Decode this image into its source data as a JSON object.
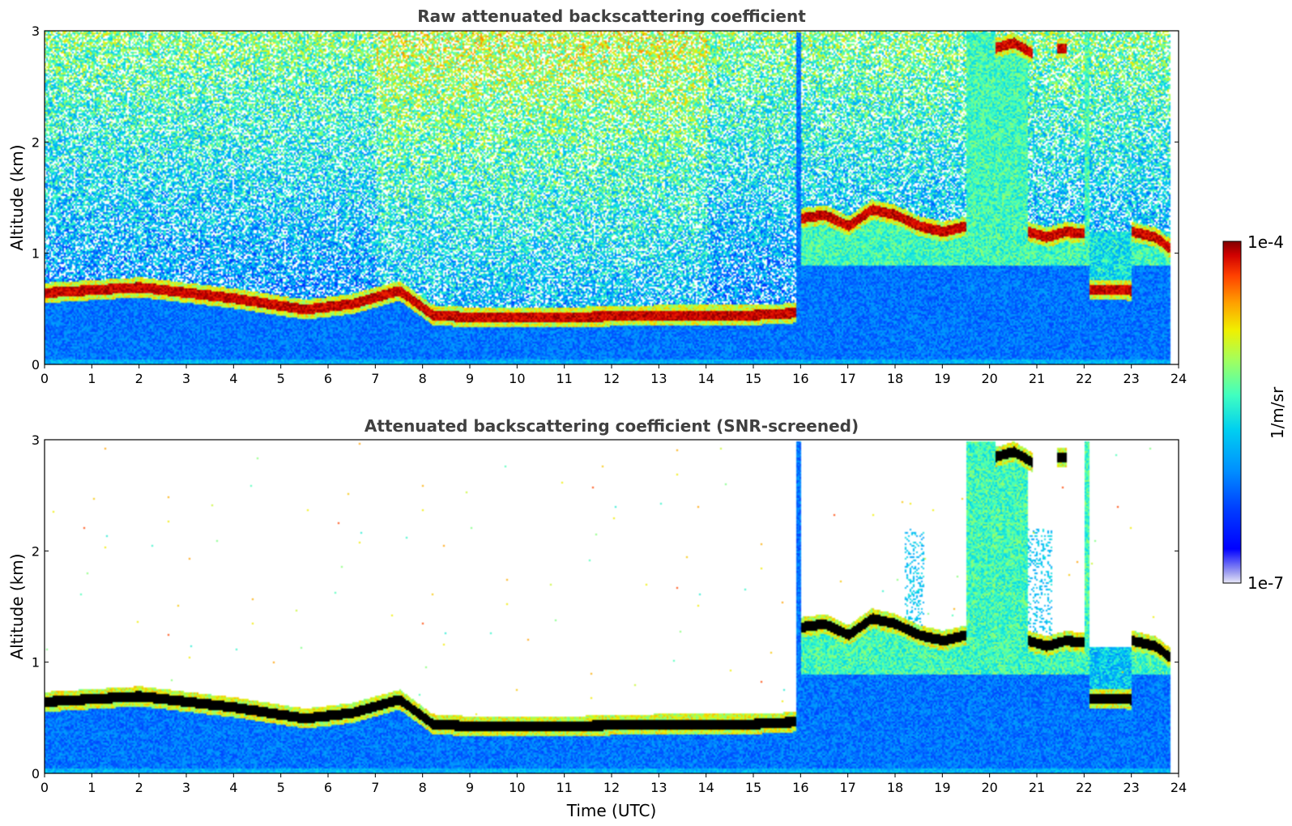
{
  "chart_data": [
    {
      "type": "heatmap",
      "title": "Raw attenuated backscattering coefficient",
      "xlabel": "",
      "ylabel": "Altitude (km)",
      "xlim": [
        0,
        24
      ],
      "ylim": [
        0,
        3
      ],
      "xticks": [
        0,
        1,
        2,
        3,
        4,
        5,
        6,
        7,
        8,
        9,
        10,
        11,
        12,
        13,
        14,
        15,
        16,
        17,
        18,
        19,
        20,
        21,
        22,
        23,
        24
      ],
      "yticks": [
        0,
        1,
        2,
        3
      ],
      "grid": false,
      "colorscale": "jet",
      "noise": "high",
      "cloud_layers": [
        {
          "t": [
            0,
            2,
            4,
            5.5,
            6.5,
            7.5,
            8.2,
            9,
            11,
            13,
            15,
            15.9
          ],
          "alt": [
            0.65,
            0.7,
            0.6,
            0.5,
            0.55,
            0.67,
            0.45,
            0.43,
            0.43,
            0.45,
            0.45,
            0.47
          ]
        },
        {
          "t": [
            16,
            16.5,
            17,
            17.5,
            18,
            18.5,
            19,
            19.5
          ],
          "alt": [
            1.32,
            1.35,
            1.25,
            1.4,
            1.35,
            1.25,
            1.2,
            1.25
          ]
        },
        {
          "t": [
            20.8,
            21.2,
            21.6,
            22.0
          ],
          "alt": [
            1.2,
            1.15,
            1.2,
            1.18
          ]
        },
        {
          "t": [
            22.1,
            22.5,
            23.0
          ],
          "alt": [
            0.68,
            0.68,
            0.67
          ]
        },
        {
          "t": [
            23.0,
            23.5,
            23.8
          ],
          "alt": [
            1.2,
            1.15,
            1.05
          ]
        },
        {
          "t": [
            20.1,
            20.5,
            20.9
          ],
          "alt": [
            2.85,
            2.9,
            2.8
          ]
        },
        {
          "t": [
            21.4,
            21.6
          ],
          "alt": [
            2.85,
            2.85
          ]
        }
      ]
    },
    {
      "type": "heatmap",
      "title": "Attenuated backscattering coefficient (SNR-screened)",
      "xlabel": "Time (UTC)",
      "ylabel": "Altitude (km)",
      "xlim": [
        0,
        24
      ],
      "ylim": [
        0,
        3
      ],
      "xticks": [
        0,
        1,
        2,
        3,
        4,
        5,
        6,
        7,
        8,
        9,
        10,
        11,
        12,
        13,
        14,
        15,
        16,
        17,
        18,
        19,
        20,
        21,
        22,
        23,
        24
      ],
      "yticks": [
        0,
        1,
        2,
        3
      ],
      "grid": false,
      "colorscale": "jet",
      "noise": "screened",
      "cloud_layers": [
        {
          "t": [
            0,
            2,
            4,
            5.5,
            6.5,
            7.5,
            8.2,
            9,
            11,
            13,
            15,
            15.9
          ],
          "alt": [
            0.65,
            0.7,
            0.6,
            0.5,
            0.55,
            0.67,
            0.45,
            0.43,
            0.43,
            0.45,
            0.45,
            0.47
          ]
        },
        {
          "t": [
            16,
            16.5,
            17,
            17.5,
            18,
            18.5,
            19,
            19.5
          ],
          "alt": [
            1.32,
            1.35,
            1.25,
            1.4,
            1.35,
            1.25,
            1.2,
            1.25
          ]
        },
        {
          "t": [
            20.8,
            21.2,
            21.6,
            22.0
          ],
          "alt": [
            1.2,
            1.15,
            1.2,
            1.18
          ]
        },
        {
          "t": [
            22.1,
            22.5,
            23.0
          ],
          "alt": [
            0.68,
            0.68,
            0.67
          ]
        },
        {
          "t": [
            23.0,
            23.5,
            23.8
          ],
          "alt": [
            1.2,
            1.15,
            1.05
          ]
        },
        {
          "t": [
            20.1,
            20.5,
            20.9
          ],
          "alt": [
            2.85,
            2.9,
            2.8
          ]
        },
        {
          "t": [
            21.4,
            21.6
          ],
          "alt": [
            2.85,
            2.85
          ]
        }
      ]
    }
  ],
  "colorbar": {
    "label": "1/m/sr",
    "max_label": "1e-4",
    "min_label": "1e-7",
    "colors": [
      "#e8e8f8",
      "#a0a0f0",
      "#0000ff",
      "#0040ff",
      "#0090ff",
      "#00d0f0",
      "#40ffc0",
      "#a0ff60",
      "#f0f000",
      "#ffa000",
      "#ff4000",
      "#d00000",
      "#800000"
    ]
  }
}
